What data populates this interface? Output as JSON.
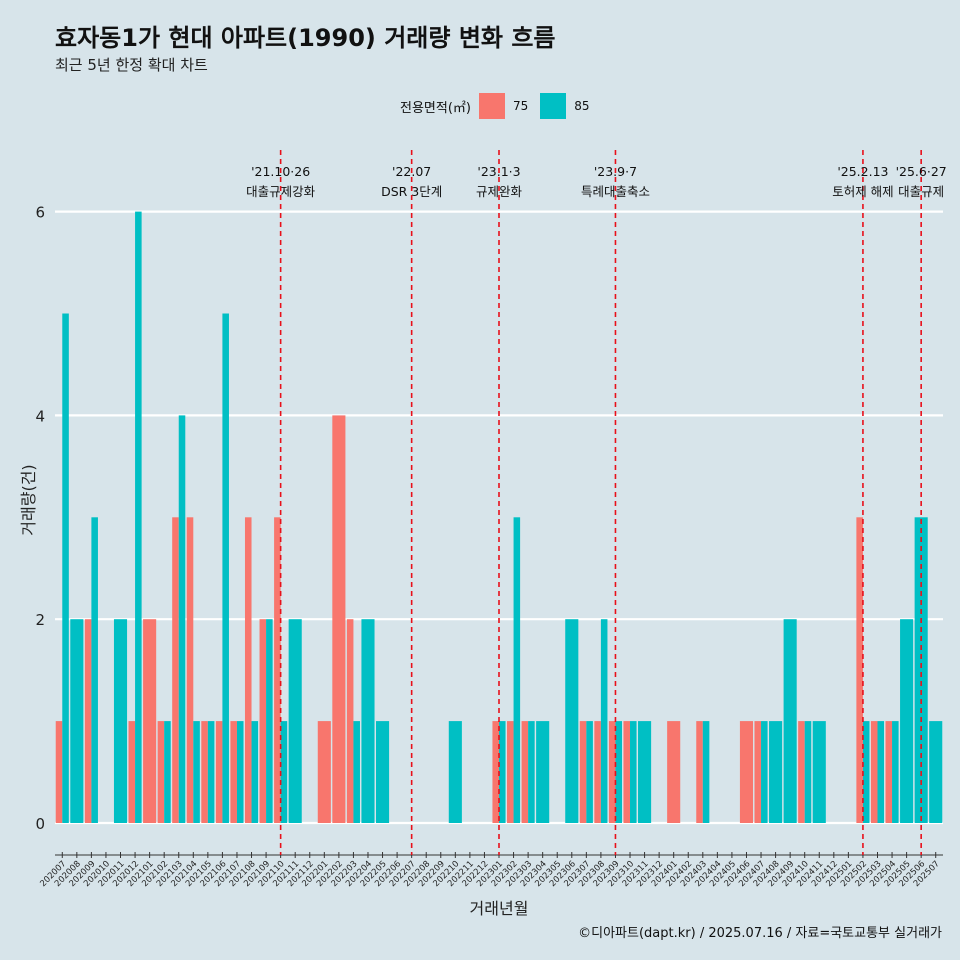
{
  "chart_data": {
    "type": "bar",
    "title": "효자동1가 현대 아파트(1990) 거래량 변화 흐름",
    "subtitle": "최근 5년 한정 확대 차트",
    "xlabel": "거래년월",
    "ylabel": "거래량(건)",
    "ylim": [
      0,
      6
    ],
    "yticks": [
      0,
      2,
      4,
      6
    ],
    "legend_title": "전용면적(㎡)",
    "legend_position": "top",
    "categories": [
      "202007",
      "202008",
      "202009",
      "202010",
      "202011",
      "202012",
      "202101",
      "202102",
      "202103",
      "202104",
      "202105",
      "202106",
      "202107",
      "202108",
      "202109",
      "202110",
      "202111",
      "202112",
      "202201",
      "202202",
      "202203",
      "202204",
      "202205",
      "202206",
      "202207",
      "202208",
      "202209",
      "202210",
      "202211",
      "202212",
      "202301",
      "202302",
      "202303",
      "202304",
      "202305",
      "202306",
      "202307",
      "202308",
      "202309",
      "202310",
      "202311",
      "202312",
      "202401",
      "202402",
      "202403",
      "202404",
      "202405",
      "202406",
      "202407",
      "202408",
      "202409",
      "202410",
      "202411",
      "202412",
      "202501",
      "202502",
      "202503",
      "202504",
      "202505",
      "202506",
      "202507"
    ],
    "series": [
      {
        "name": "75",
        "color": "#f8766d",
        "values": [
          1,
          0,
          2,
          0,
          0,
          1,
          2,
          1,
          3,
          3,
          1,
          1,
          1,
          3,
          2,
          3,
          0,
          0,
          1,
          4,
          2,
          0,
          0,
          0,
          0,
          0,
          0,
          0,
          0,
          0,
          1,
          1,
          1,
          0,
          0,
          0,
          1,
          1,
          1,
          1,
          0,
          0,
          1,
          0,
          1,
          0,
          0,
          1,
          1,
          0,
          0,
          1,
          0,
          0,
          0,
          3,
          1,
          1,
          0,
          0,
          0
        ]
      },
      {
        "name": "85",
        "color": "#00bfc4",
        "values": [
          5,
          2,
          3,
          0,
          2,
          6,
          0,
          1,
          4,
          1,
          1,
          5,
          1,
          1,
          2,
          1,
          2,
          0,
          0,
          0,
          1,
          2,
          1,
          0,
          0,
          0,
          0,
          1,
          0,
          0,
          1,
          3,
          1,
          1,
          0,
          2,
          1,
          2,
          1,
          1,
          1,
          0,
          0,
          0,
          1,
          0,
          0,
          0,
          1,
          1,
          2,
          1,
          1,
          0,
          0,
          1,
          1,
          1,
          2,
          3,
          1
        ]
      }
    ],
    "events": [
      {
        "at": 15,
        "date": "'21.10·26",
        "label": "대출규제강화"
      },
      {
        "at": 24,
        "date": "'22.07",
        "label": "DSR 3단계"
      },
      {
        "at": 30,
        "date": "'23.1·3",
        "label": "규제완화"
      },
      {
        "at": 38,
        "date": "'23.9·7",
        "label": "특례대출축소"
      },
      {
        "at": 55,
        "date": "'25.2.13",
        "label": "토허제 해제"
      },
      {
        "at": 59,
        "date": "'25.6·27",
        "label": "대출규제"
      }
    ],
    "caption": "©디아파트(dapt.kr) / 2025.07.16 / 자료=국토교통부 실거래가"
  }
}
